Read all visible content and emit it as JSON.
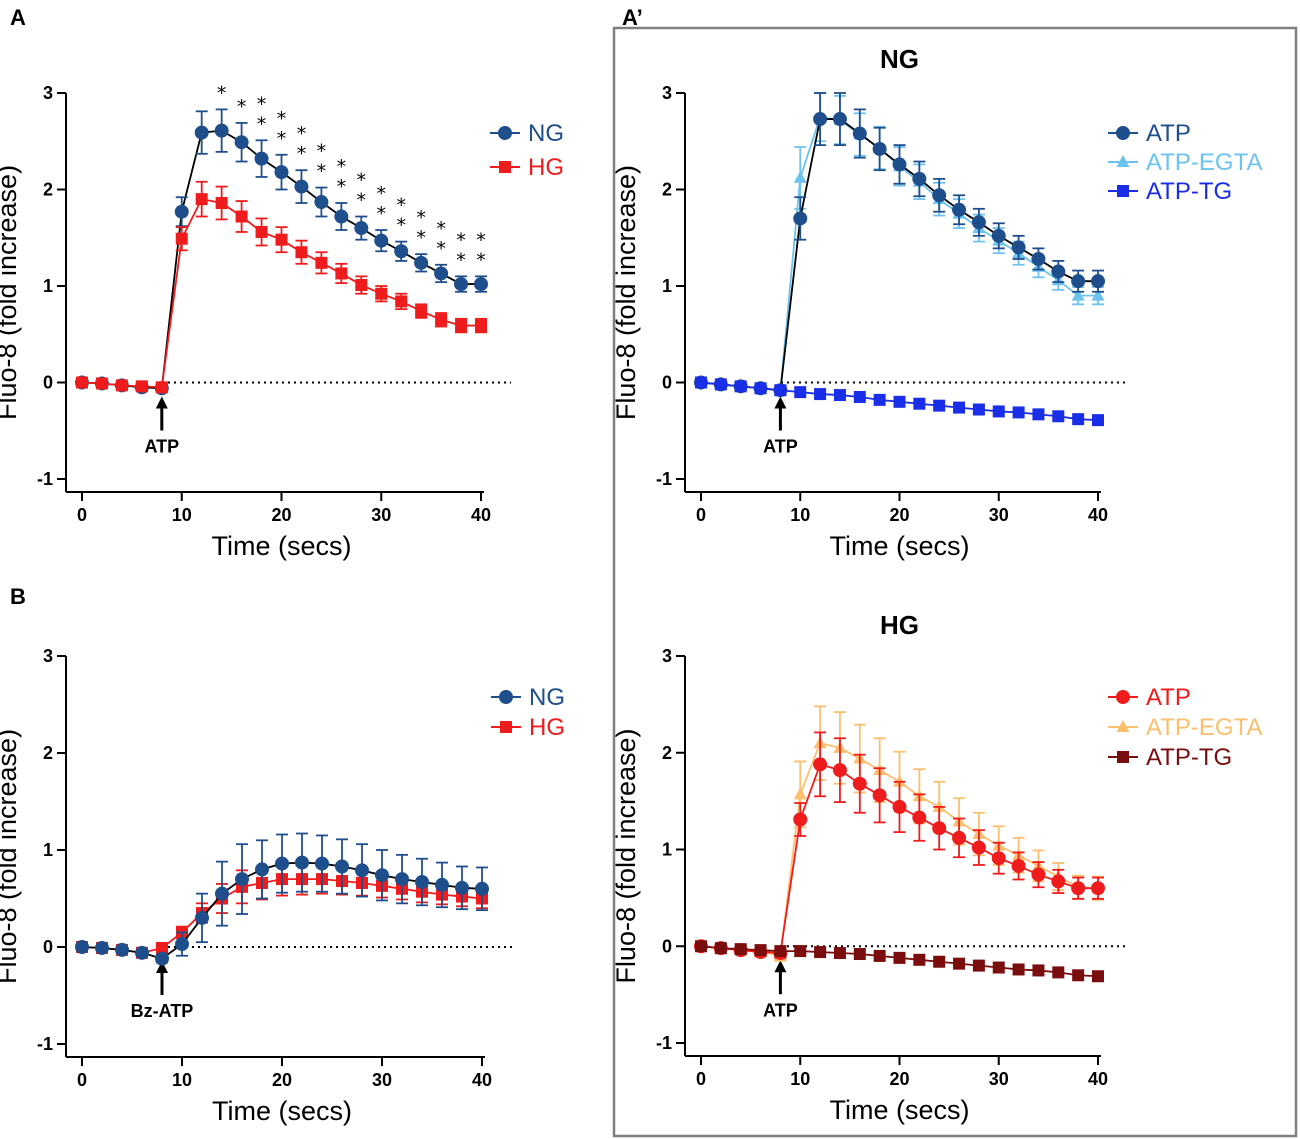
{
  "colors": {
    "NG": "#1f4e8c",
    "HG": "#ee1c1c",
    "ATP_NG": "#1f4e8c",
    "EGTA_NG": "#6cc3ee",
    "TG_NG": "#1a2ee8",
    "ATP_HG": "#ee1c1c",
    "EGTA_HG": "#fbbf6e",
    "TG_HG": "#7a0d0d"
  },
  "panels": {
    "A": "A",
    "Aprime": "A’",
    "B": "B"
  },
  "chart_data": [
    {
      "id": "A",
      "type": "line",
      "title": "",
      "xlabel": "Time (secs)",
      "ylabel": "Fluo-8 (fold increase)",
      "xlim": [
        0,
        40
      ],
      "ylim": [
        -1,
        3
      ],
      "xticks": [
        0,
        10,
        20,
        30,
        40
      ],
      "yticks": [
        -1,
        0,
        1,
        2,
        3
      ],
      "x": [
        0,
        2,
        4,
        6,
        8,
        10,
        12,
        14,
        16,
        18,
        20,
        22,
        24,
        26,
        28,
        30,
        32,
        34,
        36,
        38,
        40
      ],
      "annotation": "ATP",
      "annotation_x": 8,
      "significance": [
        "*",
        "*",
        "**",
        "**",
        "**",
        "**",
        "**",
        "**",
        "**",
        "**",
        "**",
        "**",
        "**",
        "**"
      ],
      "significance_x": [
        14,
        16,
        18,
        20,
        22,
        24,
        26,
        28,
        30,
        32,
        34,
        36,
        38,
        40
      ],
      "series": [
        {
          "name": "NG",
          "color_key": "NG",
          "marker": "circle",
          "values": [
            0,
            -0.01,
            -0.03,
            -0.05,
            -0.06,
            1.77,
            2.59,
            2.61,
            2.49,
            2.32,
            2.18,
            2.03,
            1.87,
            1.72,
            1.6,
            1.47,
            1.36,
            1.24,
            1.13,
            1.02,
            1.02
          ],
          "errors": [
            0.03,
            0.03,
            0.03,
            0.04,
            0.04,
            0.15,
            0.22,
            0.22,
            0.2,
            0.19,
            0.18,
            0.17,
            0.15,
            0.14,
            0.12,
            0.11,
            0.1,
            0.09,
            0.09,
            0.08,
            0.08
          ]
        },
        {
          "name": "HG",
          "color_key": "HG",
          "marker": "square",
          "values": [
            0,
            -0.01,
            -0.03,
            -0.04,
            -0.05,
            1.49,
            1.9,
            1.86,
            1.72,
            1.56,
            1.48,
            1.35,
            1.24,
            1.13,
            1.01,
            0.92,
            0.84,
            0.74,
            0.65,
            0.59,
            0.59
          ],
          "errors": [
            0.03,
            0.03,
            0.03,
            0.04,
            0.04,
            0.12,
            0.18,
            0.17,
            0.16,
            0.14,
            0.13,
            0.12,
            0.11,
            0.1,
            0.09,
            0.08,
            0.08,
            0.07,
            0.07,
            0.07,
            0.07
          ]
        }
      ]
    },
    {
      "id": "Aprime-NG",
      "type": "line",
      "title": "NG",
      "xlabel": "Time (secs)",
      "ylabel": "Fluo-8 (fold increase)",
      "xlim": [
        0,
        40
      ],
      "ylim": [
        -1,
        3
      ],
      "xticks": [
        0,
        10,
        20,
        30,
        40
      ],
      "yticks": [
        -1,
        0,
        1,
        2,
        3
      ],
      "x": [
        0,
        2,
        4,
        6,
        8,
        10,
        12,
        14,
        16,
        18,
        20,
        22,
        24,
        26,
        28,
        30,
        32,
        34,
        36,
        38,
        40
      ],
      "annotation": "ATP",
      "annotation_x": 8,
      "series": [
        {
          "name": "ATP-EGTA",
          "color_key": "EGTA_NG",
          "marker": "triangle",
          "values": [
            0,
            -0.02,
            -0.04,
            -0.06,
            -0.08,
            2.12,
            2.75,
            2.72,
            2.57,
            2.43,
            2.24,
            2.08,
            1.9,
            1.75,
            1.6,
            1.47,
            1.34,
            1.2,
            1.06,
            0.9,
            0.9
          ],
          "errors": [
            0.03,
            0.03,
            0.04,
            0.05,
            0.05,
            0.32,
            0.25,
            0.25,
            0.22,
            0.22,
            0.2,
            0.18,
            0.17,
            0.15,
            0.14,
            0.13,
            0.12,
            0.11,
            0.1,
            0.09,
            0.09
          ]
        },
        {
          "name": "ATP",
          "color_key": "ATP_NG",
          "marker": "circle",
          "values": [
            0,
            -0.02,
            -0.04,
            -0.06,
            -0.08,
            1.7,
            2.73,
            2.73,
            2.58,
            2.42,
            2.26,
            2.11,
            1.94,
            1.79,
            1.66,
            1.52,
            1.4,
            1.28,
            1.15,
            1.05,
            1.05
          ],
          "errors": [
            0.03,
            0.03,
            0.04,
            0.05,
            0.05,
            0.22,
            0.27,
            0.27,
            0.25,
            0.22,
            0.2,
            0.18,
            0.17,
            0.15,
            0.14,
            0.13,
            0.12,
            0.11,
            0.11,
            0.11,
            0.11
          ]
        },
        {
          "name": "ATP-TG",
          "color_key": "TG_NG",
          "marker": "square",
          "values": [
            0,
            -0.02,
            -0.04,
            -0.06,
            -0.08,
            -0.1,
            -0.12,
            -0.13,
            -0.15,
            -0.18,
            -0.2,
            -0.22,
            -0.24,
            -0.26,
            -0.28,
            -0.3,
            -0.31,
            -0.33,
            -0.35,
            -0.38,
            -0.39
          ],
          "errors": [
            0.01,
            0.01,
            0.01,
            0.01,
            0.01,
            0.01,
            0.01,
            0.01,
            0.01,
            0.01,
            0.01,
            0.01,
            0.01,
            0.01,
            0.01,
            0.01,
            0.01,
            0.01,
            0.01,
            0.01,
            0.01
          ]
        }
      ]
    },
    {
      "id": "B",
      "type": "line",
      "title": "",
      "xlabel": "Time (secs)",
      "ylabel": "Fluo-8 (fold increase)",
      "xlim": [
        0,
        40
      ],
      "ylim": [
        -1,
        3
      ],
      "xticks": [
        0,
        10,
        20,
        30,
        40
      ],
      "yticks": [
        -1,
        0,
        1,
        2,
        3
      ],
      "x": [
        0,
        2,
        4,
        6,
        8,
        10,
        12,
        14,
        16,
        18,
        20,
        22,
        24,
        26,
        28,
        30,
        32,
        34,
        36,
        38,
        40
      ],
      "annotation": "Bz-ATP",
      "annotation_x": 8,
      "series": [
        {
          "name": "HG",
          "color_key": "HG",
          "marker": "square",
          "values": [
            0,
            -0.01,
            -0.03,
            -0.06,
            -0.01,
            0.15,
            0.35,
            0.5,
            0.62,
            0.66,
            0.7,
            0.7,
            0.7,
            0.68,
            0.66,
            0.63,
            0.6,
            0.57,
            0.54,
            0.52,
            0.5
          ],
          "errors": [
            0.02,
            0.02,
            0.02,
            0.03,
            0.04,
            0.06,
            0.1,
            0.15,
            0.17,
            0.17,
            0.17,
            0.16,
            0.15,
            0.14,
            0.13,
            0.12,
            0.11,
            0.11,
            0.1,
            0.1,
            0.1
          ]
        },
        {
          "name": "NG",
          "color_key": "NG",
          "marker": "circle",
          "values": [
            0,
            -0.01,
            -0.03,
            -0.06,
            -0.12,
            0.03,
            0.3,
            0.55,
            0.7,
            0.8,
            0.86,
            0.87,
            0.86,
            0.83,
            0.79,
            0.74,
            0.7,
            0.67,
            0.64,
            0.61,
            0.6
          ],
          "errors": [
            0.02,
            0.02,
            0.02,
            0.03,
            0.04,
            0.12,
            0.25,
            0.33,
            0.36,
            0.3,
            0.3,
            0.3,
            0.29,
            0.28,
            0.27,
            0.26,
            0.25,
            0.24,
            0.23,
            0.22,
            0.22
          ]
        }
      ]
    },
    {
      "id": "Aprime-HG",
      "type": "line",
      "title": "HG",
      "xlabel": "Time (secs)",
      "ylabel": "Fluo-8 (fold increase)",
      "xlim": [
        0,
        40
      ],
      "ylim": [
        -1,
        3
      ],
      "xticks": [
        0,
        10,
        20,
        30,
        40
      ],
      "yticks": [
        -1,
        0,
        1,
        2,
        3
      ],
      "x": [
        0,
        2,
        4,
        6,
        8,
        10,
        12,
        14,
        16,
        18,
        20,
        22,
        24,
        26,
        28,
        30,
        32,
        34,
        36,
        38,
        40
      ],
      "annotation": "ATP",
      "annotation_x": 8,
      "series": [
        {
          "name": "ATP-EGTA",
          "color_key": "EGTA_HG",
          "marker": "triangle",
          "values": [
            0,
            -0.02,
            -0.04,
            -0.06,
            -0.09,
            1.57,
            2.1,
            2.05,
            1.94,
            1.82,
            1.7,
            1.55,
            1.44,
            1.29,
            1.16,
            1.04,
            0.94,
            0.83,
            0.72,
            0.61,
            0.6
          ],
          "errors": [
            0.03,
            0.03,
            0.04,
            0.05,
            0.06,
            0.34,
            0.38,
            0.37,
            0.35,
            0.33,
            0.31,
            0.28,
            0.26,
            0.24,
            0.22,
            0.2,
            0.18,
            0.16,
            0.14,
            0.12,
            0.12
          ]
        },
        {
          "name": "ATP",
          "color_key": "ATP_HG",
          "marker": "circle",
          "values": [
            0,
            -0.02,
            -0.04,
            -0.06,
            -0.07,
            1.31,
            1.88,
            1.82,
            1.68,
            1.56,
            1.44,
            1.33,
            1.22,
            1.12,
            1.02,
            0.91,
            0.83,
            0.74,
            0.67,
            0.6,
            0.6
          ],
          "errors": [
            0.03,
            0.03,
            0.04,
            0.04,
            0.05,
            0.17,
            0.33,
            0.33,
            0.3,
            0.28,
            0.26,
            0.24,
            0.22,
            0.2,
            0.18,
            0.16,
            0.14,
            0.13,
            0.12,
            0.11,
            0.11
          ]
        },
        {
          "name": "ATP-TG",
          "color_key": "TG_HG",
          "marker": "square",
          "values": [
            0,
            -0.02,
            -0.03,
            -0.04,
            -0.05,
            -0.05,
            -0.06,
            -0.07,
            -0.08,
            -0.1,
            -0.12,
            -0.14,
            -0.16,
            -0.18,
            -0.2,
            -0.22,
            -0.24,
            -0.25,
            -0.27,
            -0.3,
            -0.31
          ],
          "errors": [
            0.01,
            0.01,
            0.01,
            0.01,
            0.01,
            0.01,
            0.01,
            0.01,
            0.01,
            0.01,
            0.01,
            0.01,
            0.01,
            0.01,
            0.01,
            0.01,
            0.01,
            0.01,
            0.01,
            0.01,
            0.01
          ]
        }
      ]
    }
  ],
  "legends": {
    "A": [
      "NG",
      "HG"
    ],
    "Aprime-NG": [
      "ATP",
      "ATP-EGTA",
      "ATP-TG"
    ],
    "B": [
      "NG",
      "HG"
    ],
    "Aprime-HG": [
      "ATP",
      "ATP-EGTA",
      "ATP-TG"
    ]
  }
}
